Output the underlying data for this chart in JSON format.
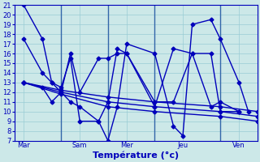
{
  "xlabel": "Température (°c)",
  "background_color": "#cce8e8",
  "grid_color": "#99ccd4",
  "line_color": "#0000bb",
  "vline_color": "#3366aa",
  "ylim": [
    7,
    21
  ],
  "yticks": [
    7,
    8,
    9,
    10,
    11,
    12,
    13,
    14,
    15,
    16,
    17,
    18,
    19,
    20,
    21
  ],
  "xlim": [
    0,
    13
  ],
  "xtick_labels": [
    "Mar",
    "Sam",
    "Mer",
    "Jeu",
    "Ven"
  ],
  "xtick_positions": [
    0.5,
    3.5,
    6.0,
    9.0,
    12.0
  ],
  "vlines_x": [
    2.5,
    5.0,
    7.5,
    11.0
  ],
  "lines": [
    {
      "x": [
        0.5,
        1.5,
        2.0,
        2.5,
        3.0,
        3.5,
        4.5,
        5.0,
        5.5,
        6.0,
        7.5,
        8.5,
        9.0,
        9.5,
        10.5,
        11.0,
        12.0,
        12.5
      ],
      "y": [
        21,
        17.5,
        13,
        12,
        11,
        10.5,
        9.0,
        7.0,
        10.5,
        17.0,
        16.0,
        8.5,
        7.5,
        19.0,
        19.5,
        17.5,
        13,
        10
      ]
    },
    {
      "x": [
        0.5,
        1.5,
        2.0,
        2.5,
        3.0,
        3.5,
        4.5,
        5.0,
        5.5,
        6.0,
        7.5,
        8.5,
        9.5,
        10.5,
        11.0,
        12.0
      ],
      "y": [
        17.5,
        14.0,
        13.0,
        12.5,
        15.5,
        9.0,
        9.0,
        11.0,
        16.5,
        16.0,
        10.5,
        16.5,
        16.0,
        10.5,
        11.0,
        10
      ]
    },
    {
      "x": [
        0.5,
        1.5,
        2.0,
        2.5,
        3.0,
        3.5,
        4.5,
        5.0,
        5.5,
        6.0,
        7.5,
        8.5,
        9.5,
        10.5,
        11.0,
        12.0
      ],
      "y": [
        13,
        12.5,
        11.0,
        12.0,
        16.0,
        12.0,
        15.5,
        15.5,
        16.0,
        16.0,
        11.0,
        11.0,
        16.0,
        16.0,
        10.0,
        10
      ]
    },
    {
      "x": [
        0.5,
        2.5,
        5.0,
        7.5,
        11.0,
        13.0
      ],
      "y": [
        13,
        12.2,
        11.5,
        11.0,
        10.5,
        10.0
      ]
    },
    {
      "x": [
        0.5,
        2.5,
        5.0,
        7.5,
        11.0,
        13.0
      ],
      "y": [
        13,
        12.0,
        11.0,
        10.5,
        10.0,
        9.5
      ]
    },
    {
      "x": [
        0.5,
        2.5,
        5.0,
        7.5,
        11.0,
        13.0
      ],
      "y": [
        13,
        11.8,
        10.5,
        10.0,
        9.5,
        9.0
      ]
    }
  ],
  "marker_size": 2.5,
  "line_width": 1.0,
  "xlabel_fontsize": 8,
  "tick_fontsize": 6
}
